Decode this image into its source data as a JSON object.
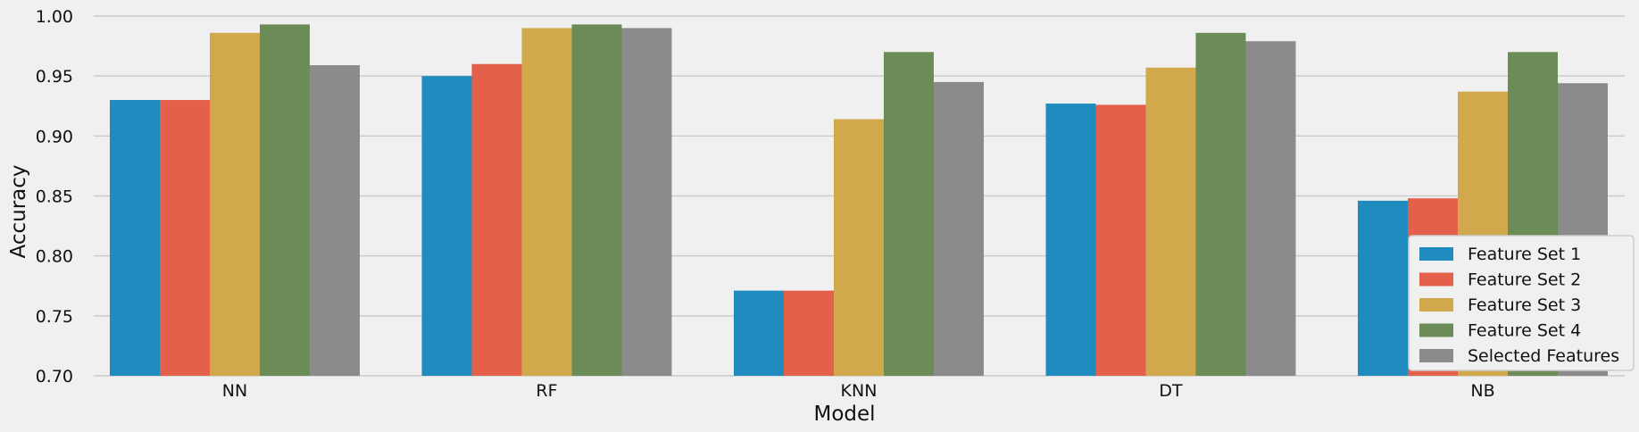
{
  "chart_data": {
    "type": "bar",
    "title": "",
    "xlabel": "Model",
    "ylabel": "Accuracy",
    "ylim": [
      0.7,
      1.0
    ],
    "yticks": [
      "0.70",
      "0.75",
      "0.80",
      "0.85",
      "0.90",
      "0.95",
      "1.00"
    ],
    "grid": true,
    "legend_position": "lower-right",
    "categories": [
      "NN",
      "RF",
      "KNN",
      "DT",
      "NB"
    ],
    "series": [
      {
        "name": "Feature Set 1",
        "color": "#1f8bbf",
        "values": [
          0.93,
          0.95,
          0.771,
          0.927,
          0.846
        ]
      },
      {
        "name": "Feature Set 2",
        "color": "#e5604a",
        "values": [
          0.93,
          0.96,
          0.771,
          0.926,
          0.848
        ]
      },
      {
        "name": "Feature Set 3",
        "color": "#d1a84c",
        "values": [
          0.986,
          0.99,
          0.914,
          0.957,
          0.937
        ]
      },
      {
        "name": "Feature Set 4",
        "color": "#6b8b57",
        "values": [
          0.993,
          0.993,
          0.97,
          0.986,
          0.97
        ]
      },
      {
        "name": "Selected Features",
        "color": "#8b8b8b",
        "values": [
          0.959,
          0.99,
          0.945,
          0.979,
          0.944
        ]
      }
    ]
  }
}
